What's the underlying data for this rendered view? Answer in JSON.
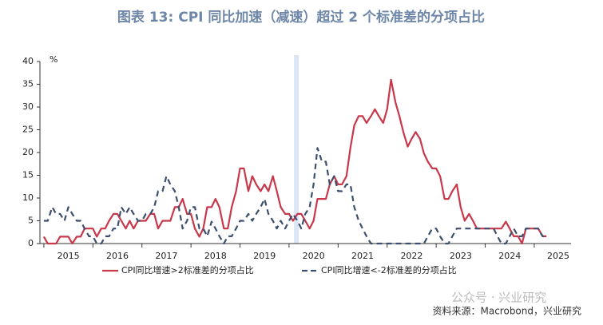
{
  "chart_data": {
    "type": "line",
    "title": "图表 13: CPI 同比加速（减速）超过 2 个标准差的分项占比",
    "y_unit": "%",
    "source": "资料来源：Macrobond，兴业研究",
    "watermark": "公众号 · 兴业研究",
    "x": [
      2015,
      2015.08,
      2015.17,
      2015.25,
      2015.33,
      2015.42,
      2015.5,
      2015.58,
      2015.67,
      2015.75,
      2015.83,
      2015.92,
      2016,
      2016.08,
      2016.17,
      2016.25,
      2016.33,
      2016.42,
      2016.5,
      2016.58,
      2016.67,
      2016.75,
      2016.83,
      2016.92,
      2017,
      2017.08,
      2017.17,
      2017.25,
      2017.33,
      2017.42,
      2017.5,
      2017.58,
      2017.67,
      2017.75,
      2017.83,
      2017.92,
      2018,
      2018.08,
      2018.17,
      2018.25,
      2018.33,
      2018.42,
      2018.5,
      2018.58,
      2018.67,
      2018.75,
      2018.83,
      2018.92,
      2019,
      2019.08,
      2019.17,
      2019.25,
      2019.33,
      2019.42,
      2019.5,
      2019.58,
      2019.67,
      2019.75,
      2019.83,
      2019.92,
      2020,
      2020.08,
      2020.17,
      2020.25,
      2020.33,
      2020.42,
      2020.5,
      2020.58,
      2020.67,
      2020.75,
      2020.83,
      2020.92,
      2021,
      2021.08,
      2021.17,
      2021.25,
      2021.33,
      2021.42,
      2021.5,
      2021.58,
      2021.67,
      2021.75,
      2021.83,
      2021.92,
      2022,
      2022.08,
      2022.17,
      2022.25,
      2022.33,
      2022.42,
      2022.5,
      2022.58,
      2022.67,
      2022.75,
      2022.83,
      2022.92,
      2023,
      2023.08,
      2023.17,
      2023.25,
      2023.33,
      2023.42,
      2023.5,
      2023.58,
      2023.67,
      2023.75,
      2023.83,
      2023.92,
      2024,
      2024.08,
      2024.17,
      2024.25,
      2024.33,
      2024.42,
      2024.5,
      2024.58,
      2024.67,
      2024.75,
      2024.83,
      2024.92,
      2025,
      2025.08,
      2025.17,
      2025.25
    ],
    "series": [
      {
        "name": "CPI同比增速>2标准差的分项占比",
        "color": "#c8374a",
        "dash": false,
        "values": [
          1.5,
          0,
          0,
          0,
          1.5,
          1.5,
          1.5,
          0,
          1.5,
          1.5,
          3.3,
          3.3,
          3.3,
          1.5,
          3.3,
          3.3,
          5,
          6.5,
          6.5,
          5,
          3.3,
          5,
          3.3,
          5,
          5,
          5,
          6.5,
          6.5,
          3.3,
          5,
          5,
          5,
          8,
          8,
          9.8,
          6.5,
          6.5,
          3.3,
          1.5,
          3.3,
          8,
          8,
          9.8,
          8,
          3.3,
          3.3,
          8,
          11.5,
          16.5,
          16.5,
          11.5,
          14.8,
          13,
          11.5,
          13,
          11.5,
          14.8,
          11.5,
          8,
          6.5,
          6.5,
          5,
          6.5,
          6.5,
          5,
          3.3,
          5,
          9.8,
          9.8,
          9.8,
          13,
          14.8,
          13,
          13,
          14.8,
          21,
          26,
          28,
          28,
          26.5,
          28,
          29.5,
          28,
          26.5,
          29.5,
          36,
          31,
          28,
          24.5,
          21.3,
          23,
          24.5,
          23,
          19.8,
          18,
          16.5,
          16.5,
          14.8,
          9.8,
          9.8,
          11.5,
          13,
          8,
          5,
          6.5,
          5,
          3.3,
          3.3,
          3.3,
          3.3,
          3.3,
          3.3,
          3.3,
          4.8,
          3.3,
          1.6,
          1.6,
          0,
          3.3,
          3.3,
          3.3,
          3.3,
          1.6,
          1.6
        ]
      },
      {
        "name": "CPI同比增速<-2标准差的分项占比",
        "color": "#3d4f6e",
        "dash": true,
        "values": [
          5,
          5,
          8,
          6.5,
          6.5,
          5,
          8,
          6.5,
          5,
          5,
          3.3,
          1.6,
          1.6,
          0,
          0,
          1.6,
          1.6,
          3.3,
          3.3,
          8,
          6.5,
          8,
          6.5,
          5,
          5,
          6.5,
          6.5,
          8,
          11.5,
          11.5,
          14.8,
          13,
          11.5,
          8,
          3.3,
          5,
          8,
          8,
          3.3,
          3.3,
          1.6,
          4.8,
          3.3,
          1.6,
          0,
          1.6,
          1.6,
          3.3,
          5,
          5,
          6.5,
          5,
          6.5,
          8,
          9.8,
          6.5,
          5,
          3.3,
          5,
          3.3,
          5,
          6.5,
          5,
          3.3,
          6.5,
          8,
          13,
          21,
          18,
          18,
          13,
          14.8,
          11.5,
          11.5,
          13,
          13,
          8,
          5,
          3.3,
          1.6,
          0,
          0,
          0,
          0,
          0,
          0,
          0,
          0,
          0,
          0,
          0,
          0,
          0,
          0,
          1.6,
          3.3,
          3.3,
          1.6,
          0,
          0,
          1.6,
          3.3,
          3.3,
          3.3,
          3.3,
          3.3,
          3.3,
          3.3,
          3.3,
          3.3,
          3.3,
          1.6,
          0,
          0,
          1.6,
          3.3,
          1.6,
          1.6,
          3.3,
          3.3,
          3.3,
          3.3,
          1.6,
          1.6
        ]
      }
    ],
    "shade": [
      2020.1,
      2020.2
    ],
    "xlim": [
      2014.92,
      2025.75
    ],
    "xticks": [
      2015,
      2016,
      2017,
      2018,
      2019,
      2020,
      2021,
      2022,
      2023,
      2024,
      2025
    ],
    "ylim": [
      0,
      40
    ],
    "yticks": [
      0,
      5,
      10,
      15,
      20,
      25,
      30,
      35,
      40
    ],
    "legend": "bottom"
  }
}
